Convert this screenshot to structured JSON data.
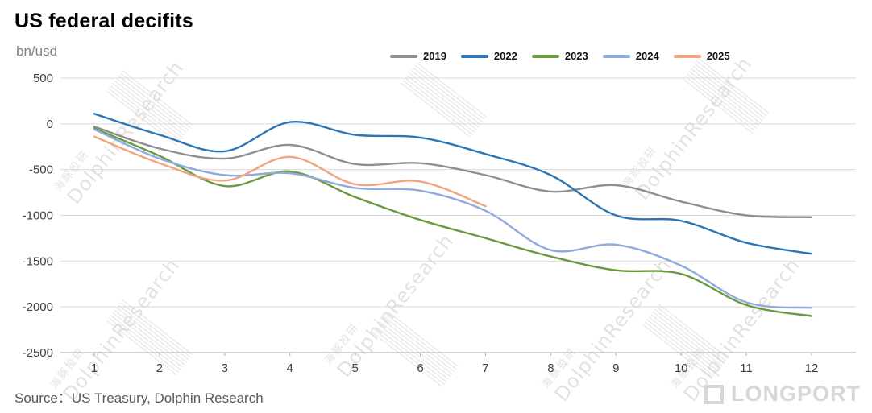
{
  "title": "US federal decifits",
  "unit_label": "bn/usd",
  "source": "Source：US Treasury, Dolphin Research",
  "watermark": {
    "cn": "海豚投研",
    "en": "DolphinResearch",
    "brand": "LONGPORT"
  },
  "chart_data": {
    "type": "line",
    "title": "US federal decifits",
    "xlabel": "",
    "ylabel": "bn/usd",
    "x": [
      1,
      2,
      3,
      4,
      5,
      6,
      7,
      8,
      9,
      10,
      11,
      12
    ],
    "ylim": [
      -2500,
      500
    ],
    "ytick_step": 500,
    "yticks": [
      500,
      0,
      -500,
      -1000,
      -1500,
      -2000,
      -2500
    ],
    "grid": true,
    "legend_position": "top",
    "series": [
      {
        "name": "2019",
        "color": "#8f8f8f",
        "values": [
          -30,
          -270,
          -380,
          -230,
          -440,
          -430,
          -560,
          -740,
          -670,
          -850,
          -1000,
          -1020
        ]
      },
      {
        "name": "2022",
        "color": "#2e75b6",
        "values": [
          110,
          -120,
          -300,
          20,
          -120,
          -150,
          -330,
          -560,
          -1000,
          -1060,
          -1300,
          -1420
        ]
      },
      {
        "name": "2023",
        "color": "#6a9a3f",
        "values": [
          -50,
          -350,
          -680,
          -520,
          -800,
          -1050,
          -1250,
          -1450,
          -1600,
          -1640,
          -1980,
          -2100
        ]
      },
      {
        "name": "2024",
        "color": "#8faadc",
        "values": [
          -60,
          -380,
          -560,
          -540,
          -700,
          -730,
          -950,
          -1380,
          -1320,
          -1550,
          -1950,
          -2010
        ]
      },
      {
        "name": "2025",
        "color": "#f2a47e",
        "values": [
          -140,
          -430,
          -620,
          -360,
          -660,
          -630,
          -900,
          null,
          null,
          null,
          null,
          null
        ]
      }
    ]
  }
}
